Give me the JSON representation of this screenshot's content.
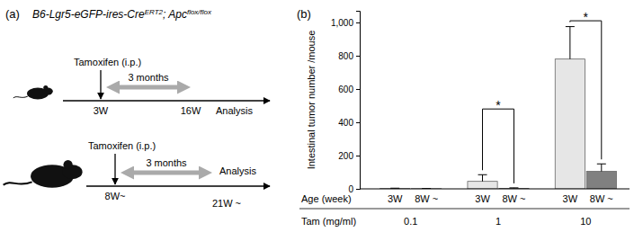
{
  "panel_a": {
    "label": "(a)",
    "genotype": [
      {
        "text": "B6-Lgr5-eGFP-ires-Cre",
        "sup": false
      },
      {
        "text": "ERT2",
        "sup": true
      },
      {
        "text": "; Apc",
        "sup": false
      },
      {
        "text": "flox/flox",
        "sup": true
      }
    ],
    "timelines": [
      {
        "tamoxifen": "Tamoxifen (i.p.)",
        "duration": "3 months",
        "start": "3W",
        "end": "16W",
        "analysis": "Analysis"
      },
      {
        "tamoxifen": "Tamoxifen (i.p.)",
        "duration": "3 months",
        "start": "8W~",
        "end": "21W ~",
        "analysis": "Analysis"
      }
    ]
  },
  "chart_data": {
    "type": "bar",
    "panel_label": "(b)",
    "y_label": "Intestinal tumor number /mouse",
    "categories": [
      "3W",
      "8W ~",
      "3W",
      "8W ~",
      "3W",
      "8W ~"
    ],
    "category_row_label": "Age (week)",
    "groups": [
      "0.1",
      "1",
      "10"
    ],
    "group_row_label": "Tam (mg/ml)",
    "values": [
      2,
      1,
      45,
      3,
      780,
      105
    ],
    "errors": [
      2,
      1,
      40,
      3,
      195,
      45
    ],
    "colors": [
      "#e6e6e6",
      "#808080",
      "#e6e6e6",
      "#808080",
      "#e6e6e6",
      "#808080"
    ],
    "ylim": [
      0,
      1070
    ],
    "yticks": [
      0,
      200,
      400,
      600,
      800,
      {
        "value": 1000,
        "label": "1,000"
      }
    ],
    "annotations": [
      {
        "text": "*",
        "from": 2,
        "to": 3,
        "y": 480
      },
      {
        "text": "*",
        "from": 4,
        "to": 5,
        "y": 1010
      }
    ]
  }
}
